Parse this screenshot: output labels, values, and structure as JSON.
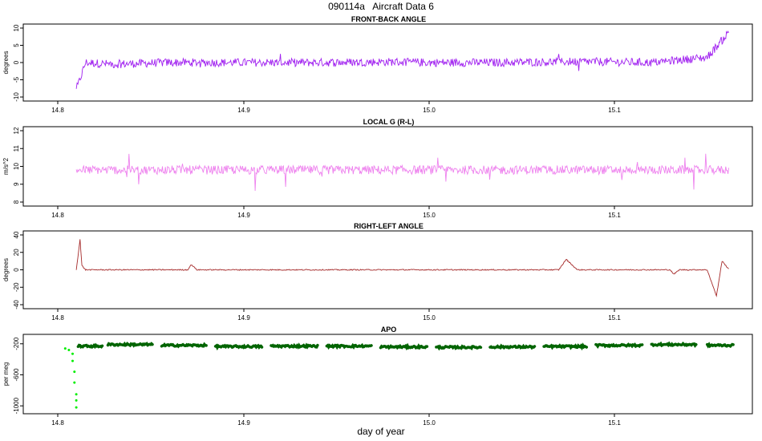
{
  "page": {
    "title": "090114a   Aircraft Data 6",
    "xlabel": "day of year"
  },
  "chart_data": [
    {
      "type": "line",
      "title": "FRONT-BACK ANGLE",
      "ylabel": "degrees",
      "xlim": [
        14.8,
        15.16
      ],
      "xticks": [
        "14.8",
        "14.9",
        "15.0",
        "15.1"
      ],
      "ylim": [
        -10,
        10
      ],
      "yticks": [
        "-10",
        "-5",
        "0",
        "5",
        "10"
      ],
      "color": "#a020f0",
      "series": [
        {
          "x": [
            14.81,
            14.815,
            14.83,
            14.86,
            14.9,
            14.94,
            14.98,
            15.0,
            15.04,
            15.08,
            15.12,
            15.15,
            15.162
          ],
          "y": [
            -8,
            0,
            -0.5,
            0,
            0,
            0,
            0.2,
            0,
            0,
            0.3,
            0,
            1.5,
            9
          ]
        }
      ]
    },
    {
      "type": "line",
      "title": "LOCAL G (R-L)",
      "ylabel": "m/s^2",
      "xlim": [
        14.8,
        15.16
      ],
      "xticks": [
        "14.8",
        "14.9",
        "15.0",
        "15.1"
      ],
      "ylim": [
        8,
        12
      ],
      "yticks": [
        "8",
        "9",
        "10",
        "11",
        "12"
      ],
      "color": "#ee82ee",
      "series": [
        {
          "x": [
            14.81,
            14.83,
            14.86,
            14.9,
            14.94,
            14.98,
            15.0,
            15.04,
            15.08,
            15.12,
            15.162
          ],
          "y": [
            9.8,
            9.8,
            9.8,
            9.8,
            9.8,
            9.8,
            9.8,
            9.8,
            9.8,
            9.8,
            9.8
          ]
        }
      ]
    },
    {
      "type": "line",
      "title": "RIGHT-LEFT ANGLE",
      "ylabel": "degrees",
      "xlim": [
        14.8,
        15.16
      ],
      "xticks": [
        "14.8",
        "14.9",
        "15.0",
        "15.1"
      ],
      "ylim": [
        -40,
        40
      ],
      "yticks": [
        "-40",
        "-20",
        "0",
        "20",
        "40"
      ],
      "color": "#a52a2a",
      "series": [
        {
          "x": [
            14.81,
            14.812,
            14.813,
            14.815,
            14.82,
            14.87,
            14.872,
            14.875,
            14.9,
            15.0,
            15.04,
            15.07,
            15.074,
            15.08,
            15.13,
            15.132,
            15.135,
            15.15,
            15.155,
            15.158,
            15.162
          ],
          "y": [
            0,
            35,
            5,
            0,
            0,
            0,
            6,
            0,
            0,
            0,
            0,
            0,
            12,
            0,
            0,
            -5,
            0,
            0,
            -30,
            10,
            0
          ]
        }
      ]
    },
    {
      "type": "scatter",
      "title": "APO",
      "ylabel": "per meg",
      "xlim": [
        14.8,
        15.16
      ],
      "xticks": [
        "14.8",
        "14.9",
        "15.0",
        "15.1"
      ],
      "ylim": [
        -1050,
        -130
      ],
      "yticks": [
        "-1000",
        "-600",
        "-200"
      ],
      "colors": {
        "main": "#006400",
        "light": "#00ee00"
      },
      "segments": [
        {
          "x0": 14.811,
          "x1": 14.824,
          "y": -230
        },
        {
          "x0": 14.827,
          "x1": 14.851,
          "y": -210
        },
        {
          "x0": 14.856,
          "x1": 14.88,
          "y": -220
        },
        {
          "x0": 14.885,
          "x1": 14.91,
          "y": -235
        },
        {
          "x0": 14.915,
          "x1": 14.94,
          "y": -230
        },
        {
          "x0": 14.945,
          "x1": 14.969,
          "y": -230
        },
        {
          "x0": 14.974,
          "x1": 14.999,
          "y": -240
        },
        {
          "x0": 15.004,
          "x1": 15.028,
          "y": -245
        },
        {
          "x0": 15.033,
          "x1": 15.057,
          "y": -240
        },
        {
          "x0": 15.062,
          "x1": 15.085,
          "y": -235
        },
        {
          "x0": 15.09,
          "x1": 15.115,
          "y": -220
        },
        {
          "x0": 15.12,
          "x1": 15.144,
          "y": -210
        },
        {
          "x0": 15.15,
          "x1": 15.164,
          "y": -220
        }
      ],
      "light_points": [
        {
          "x": 14.804,
          "y": -260
        },
        {
          "x": 14.806,
          "y": -280
        },
        {
          "x": 14.808,
          "y": -330
        },
        {
          "x": 14.808,
          "y": -420
        },
        {
          "x": 14.809,
          "y": -560
        },
        {
          "x": 14.809,
          "y": -700
        },
        {
          "x": 14.81,
          "y": -850
        },
        {
          "x": 14.81,
          "y": -930
        },
        {
          "x": 14.81,
          "y": -1020
        }
      ]
    }
  ]
}
